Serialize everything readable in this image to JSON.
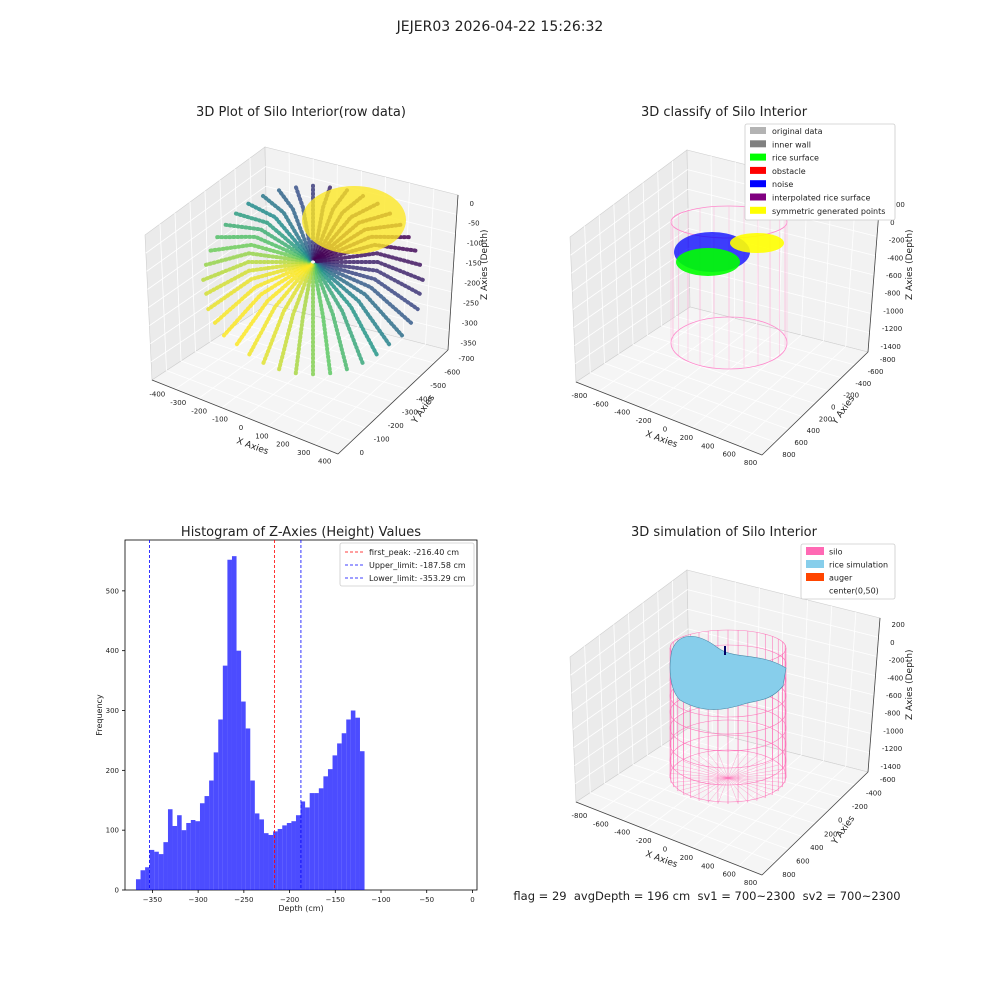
{
  "figure": {
    "suptitle": "JEJER03 2026-04-22 15:26:32",
    "footer": "flag = 29  avgDepth = 196 cm  sv1 = 700~2300  sv2 = 700~2300"
  },
  "panels": {
    "raw": {
      "title": "3D Plot of Silo Interior(row data)",
      "xlabel": "X Axies",
      "ylabel": "Y Axies",
      "zlabel": "Z Axies (Depth)",
      "xticks": [
        "-400",
        "-300",
        "-200",
        "-100",
        "0",
        "100",
        "200",
        "300",
        "400"
      ],
      "yticks": [
        "0",
        "-100",
        "-200",
        "-300",
        "-400",
        "-500",
        "-600",
        "-700"
      ],
      "zticks": [
        "0",
        "-50",
        "-100",
        "-150",
        "-200",
        "-250",
        "-300",
        "-350"
      ]
    },
    "classify": {
      "title": "3D classify of Silo Interior",
      "xlabel": "X Axies",
      "ylabel": "Y Axies",
      "zlabel": "Z Axies (Depth)",
      "xticks": [
        "-800",
        "-600",
        "-400",
        "-200",
        "0",
        "200",
        "400",
        "600",
        "800"
      ],
      "yticks": [
        "800",
        "600",
        "400",
        "200",
        "0",
        "-200",
        "-400",
        "-600",
        "-800"
      ],
      "zticks": [
        "200",
        "0",
        "-200",
        "-400",
        "-600",
        "-800",
        "-1000",
        "-1200",
        "-1400"
      ],
      "legend": [
        {
          "label": "original data",
          "color": "#b3b3b3"
        },
        {
          "label": "inner wall",
          "color": "#808080"
        },
        {
          "label": "rice surface",
          "color": "#00ff00"
        },
        {
          "label": "obstacle",
          "color": "#ff0000"
        },
        {
          "label": "noise",
          "color": "#0000ff"
        },
        {
          "label": "interpolated rice surface",
          "color": "#800080"
        },
        {
          "label": "symmetric generated points",
          "color": "#ffff00"
        }
      ]
    },
    "simulation": {
      "title": "3D simulation of Silo Interior",
      "xlabel": "X Axies",
      "ylabel": "Y Axies",
      "zlabel": "Z Axies (Depth)",
      "xticks": [
        "-800",
        "-600",
        "-400",
        "-200",
        "0",
        "200",
        "400",
        "600",
        "800"
      ],
      "yticks": [
        "800",
        "600",
        "400",
        "200",
        "0",
        "-200",
        "-400",
        "-600"
      ],
      "zticks": [
        "200",
        "0",
        "-200",
        "-400",
        "-600",
        "-800",
        "-1000",
        "-1200",
        "-1400"
      ],
      "legend": [
        {
          "label": "silo",
          "color": "#ff69b4"
        },
        {
          "label": "rice simulation",
          "color": "#87ceeb"
        },
        {
          "label": "auger",
          "color": "#ff4500"
        },
        {
          "label": "center(0,50)",
          "color": "#ffffff"
        }
      ]
    }
  },
  "chart_data": {
    "type": "bar",
    "title": "Histogram of Z-Axies (Height) Values",
    "xlabel": "Depth (cm)",
    "ylabel": "Frequency",
    "xlim": [
      -380,
      5
    ],
    "ylim": [
      0,
      585
    ],
    "xticks": [
      -350,
      -300,
      -250,
      -200,
      -150,
      -100,
      -50,
      0
    ],
    "yticks": [
      0,
      100,
      200,
      300,
      400,
      500
    ],
    "bin_start": -368,
    "bin_width": 5,
    "values": [
      18,
      33,
      38,
      67,
      64,
      60,
      80,
      135,
      107,
      125,
      100,
      112,
      117,
      115,
      145,
      157,
      183,
      230,
      285,
      375,
      552,
      558,
      400,
      315,
      270,
      183,
      128,
      118,
      95,
      92,
      98,
      102,
      108,
      112,
      115,
      125,
      148,
      138,
      162,
      162,
      170,
      190,
      202,
      225,
      245,
      262,
      285,
      300,
      288,
      232
    ],
    "bar_color": "#0000ff",
    "vlines": [
      {
        "x": -216.4,
        "color": "#ff0000",
        "label": "first_peak: -216.40 cm"
      },
      {
        "x": -187.58,
        "color": "#0000ff",
        "label": "Upper_limit: -187.58 cm"
      },
      {
        "x": -353.29,
        "color": "#0000ff",
        "label": "Lower_limit: -353.29 cm"
      }
    ]
  }
}
